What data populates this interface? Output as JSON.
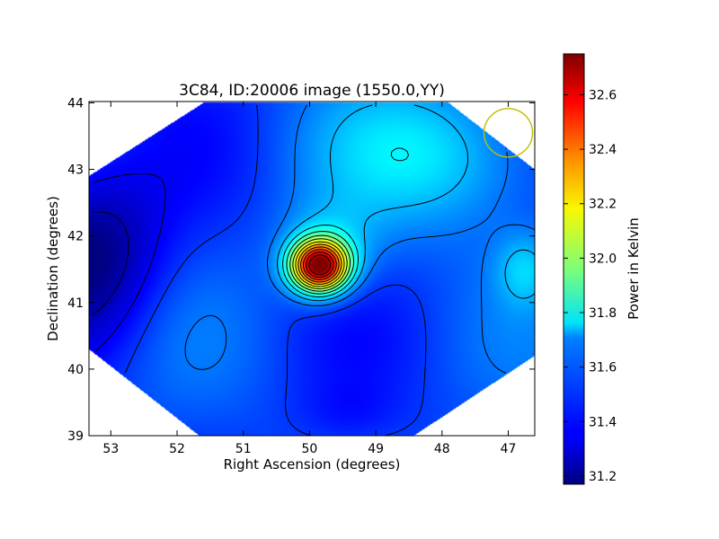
{
  "chart_data": {
    "type": "heatmap",
    "title": "3C84, ID:20006 image (1550.0,YY)",
    "xlabel": "Right Ascension (degrees)",
    "ylabel": "Declination (degrees)",
    "xlim": [
      53.33,
      46.6
    ],
    "ylim": [
      39.0,
      44.02
    ],
    "x_ticks": [
      53,
      52,
      51,
      50,
      49,
      48,
      47
    ],
    "y_ticks": [
      39,
      40,
      41,
      42,
      43,
      44
    ],
    "colorbar": {
      "label": "Power in Kelvin",
      "range": [
        31.17,
        32.75
      ],
      "ticks": [
        "31.2",
        "31.4",
        "31.6",
        "31.8",
        "32.0",
        "32.2",
        "32.4",
        "32.6"
      ],
      "colormap": "jet"
    },
    "field_sources": [
      {
        "kind": "peak",
        "ra": 49.85,
        "dec": 41.55,
        "value": 32.7
      },
      {
        "kind": "trough",
        "ra": 53.33,
        "dec": 41.75,
        "value": 31.17
      },
      {
        "kind": "local-max",
        "ra": 46.75,
        "dec": 41.5,
        "value": 31.8
      },
      {
        "kind": "plateau",
        "ra": 48.0,
        "dec": 43.2,
        "value": 31.72
      }
    ],
    "beam_circle": {
      "ra": 47.0,
      "dec": 43.55,
      "color": "#bfbf00"
    },
    "grid": false,
    "legend": "none"
  }
}
